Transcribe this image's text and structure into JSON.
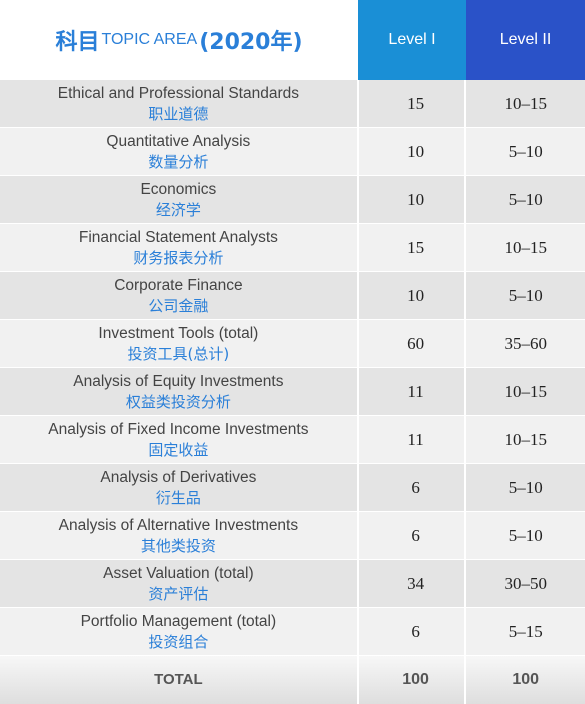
{
  "header": {
    "topic_cn": "科目",
    "topic_en": "TOPIC AREA",
    "topic_year": "(2020年)",
    "level1": "Level I",
    "level2": "Level II"
  },
  "rows": [
    {
      "en": "Ethical and Professional Standards",
      "cn": "职业道德",
      "l1": "15",
      "l2": "10–15"
    },
    {
      "en": "Quantitative Analysis",
      "cn": "数量分析",
      "l1": "10",
      "l2": "5–10"
    },
    {
      "en": "Economics",
      "cn": "经济学",
      "l1": "10",
      "l2": "5–10"
    },
    {
      "en": "Financial Statement Analysts",
      "cn": "财务报表分析",
      "l1": "15",
      "l2": "10–15"
    },
    {
      "en": "Corporate Finance",
      "cn": "公司金融",
      "l1": "10",
      "l2": "5–10"
    },
    {
      "en": "Investment Tools (total)",
      "cn": "投资工具(总计)",
      "l1": "60",
      "l2": "35–60"
    },
    {
      "en": "Analysis of Equity Investments",
      "cn": "权益类投资分析",
      "l1": "11",
      "l2": "10–15"
    },
    {
      "en": "Analysis of Fixed Income Investments",
      "cn": "固定收益",
      "l1": "11",
      "l2": "10–15"
    },
    {
      "en": "Analysis of Derivatives",
      "cn": "衍生品",
      "l1": "6",
      "l2": "5–10"
    },
    {
      "en": "Analysis of Alternative Investments",
      "cn": "其他类投资",
      "l1": "6",
      "l2": "5–10"
    },
    {
      "en": "Asset Valuation (total)",
      "cn": "资产评估",
      "l1": "34",
      "l2": "30–50"
    },
    {
      "en": "Portfolio Management (total)",
      "cn": "投资组合",
      "l1": "6",
      "l2": "5–15"
    }
  ],
  "total": {
    "label": "TOTAL",
    "l1": "100",
    "l2": "100"
  }
}
